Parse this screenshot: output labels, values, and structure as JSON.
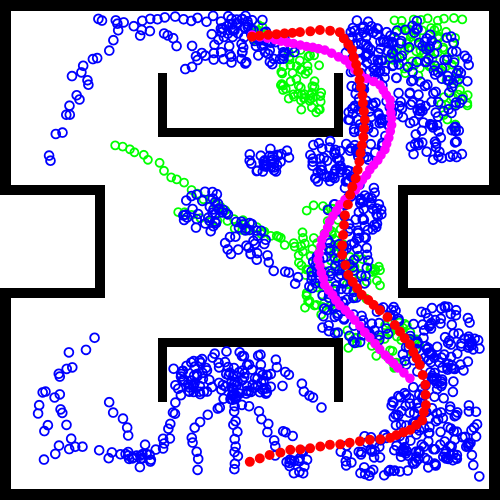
{
  "scene": {
    "type": "motion-planning-visualization",
    "colors": {
      "background": "#ffffff",
      "walls": "#000000",
      "tree_nodes": "#0000ff",
      "secondary_tree_nodes": "#00ff00",
      "path_a": "#ff0000",
      "path_b": "#ff00ff"
    },
    "marker_shape": "hollow-circle",
    "path_marker_shape": "filled-circle"
  }
}
